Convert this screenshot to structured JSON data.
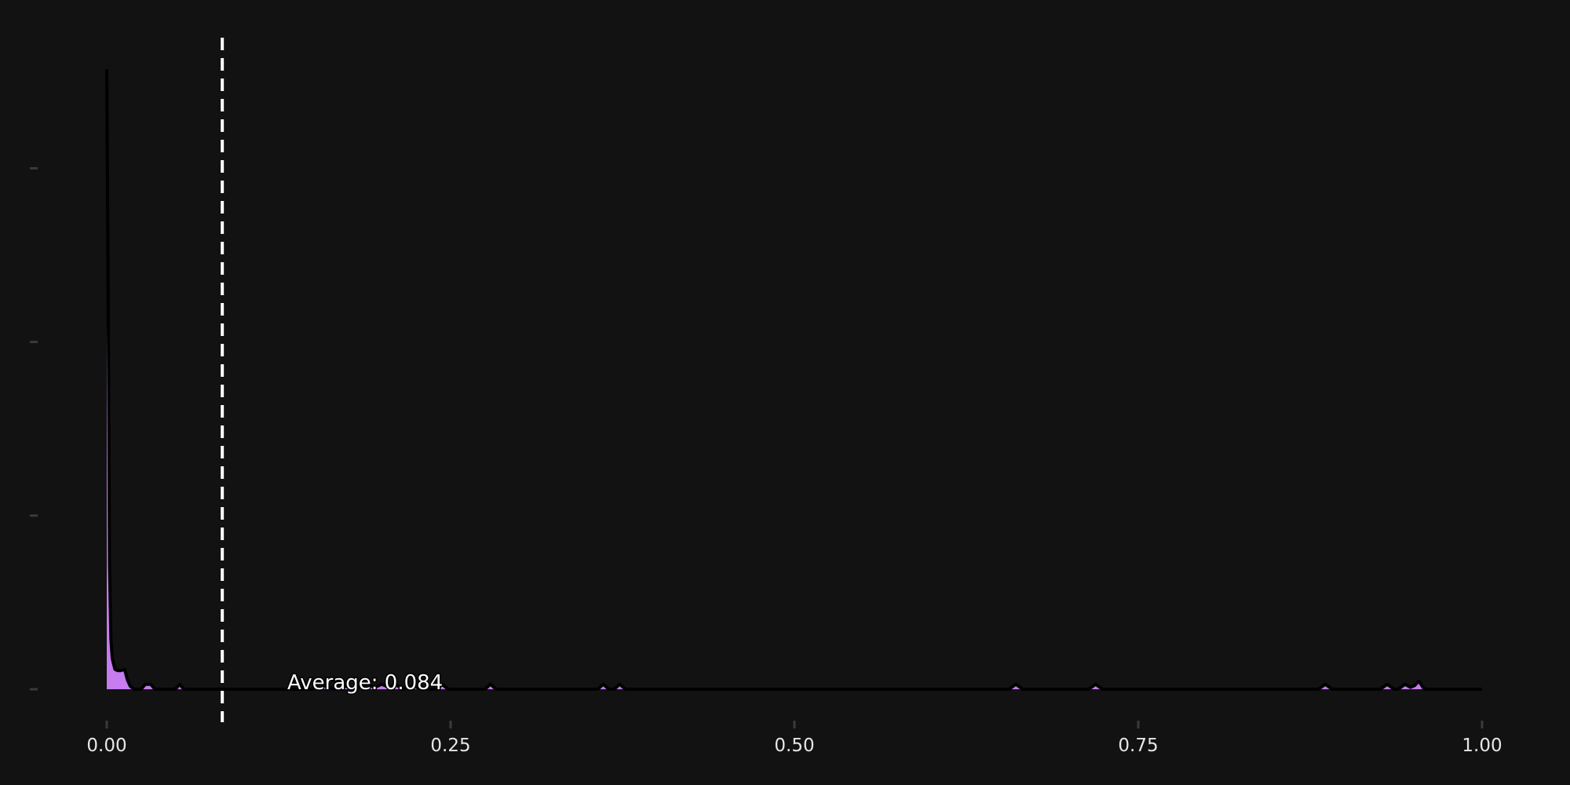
{
  "chart_data": {
    "type": "area",
    "title": "",
    "xlabel": "",
    "ylabel": "",
    "xlim": [
      0,
      1
    ],
    "ylim": [
      0,
      100
    ],
    "x_ticks": [
      {
        "value": 0.0,
        "label": "0.00"
      },
      {
        "value": 0.25,
        "label": "0.25"
      },
      {
        "value": 0.5,
        "label": "0.50"
      },
      {
        "value": 0.75,
        "label": "0.75"
      },
      {
        "value": 1.0,
        "label": "1.00"
      }
    ],
    "y_ticks": [
      0,
      28,
      56,
      84
    ],
    "grid": false,
    "colors": {
      "background": "#121213",
      "fill": "#c77cf0",
      "outline": "#000000",
      "reference_line": "#ffffff",
      "tick_mark": "#3a3a3a"
    },
    "density": {
      "x": [
        0.0,
        0.0008,
        0.0015,
        0.002,
        0.003,
        0.004,
        0.005,
        0.006,
        0.008,
        0.01,
        0.013,
        0.015,
        0.017,
        0.02,
        0.025,
        0.028,
        0.03,
        0.032,
        0.035,
        0.04,
        0.05,
        0.053,
        0.056,
        0.06,
        0.15,
        0.152,
        0.155,
        0.158,
        0.165,
        0.172,
        0.18,
        0.19,
        0.195,
        0.2,
        0.205,
        0.21,
        0.215,
        0.222,
        0.23,
        0.24,
        0.244,
        0.248,
        0.275,
        0.279,
        0.283,
        0.357,
        0.361,
        0.365,
        0.369,
        0.373,
        0.377,
        0.656,
        0.661,
        0.666,
        0.714,
        0.719,
        0.724,
        0.881,
        0.886,
        0.891,
        0.926,
        0.931,
        0.936,
        0.939,
        0.944,
        0.948,
        0.951,
        0.954,
        0.958,
        1.0
      ],
      "y": [
        100,
        72,
        45,
        20,
        8,
        5,
        4,
        3.2,
        3,
        3,
        3.2,
        1.5,
        0.5,
        0,
        0,
        0.8,
        0.8,
        0.8,
        0,
        0,
        0,
        0.8,
        0,
        0,
        0,
        0.8,
        0,
        0.6,
        0,
        0.6,
        0,
        0.7,
        0.3,
        0.8,
        0.3,
        0.8,
        0,
        0.5,
        0,
        0,
        0.8,
        0,
        0,
        0.8,
        0,
        0,
        0.8,
        0,
        0,
        0.8,
        0,
        0,
        0.8,
        0,
        0,
        0.8,
        0,
        0,
        0.8,
        0,
        0,
        0.8,
        0,
        0,
        0.8,
        0.3,
        0.6,
        1.3,
        0,
        0
      ]
    },
    "reference_line": {
      "x": 0.084,
      "label": "Average: 0.084"
    }
  }
}
